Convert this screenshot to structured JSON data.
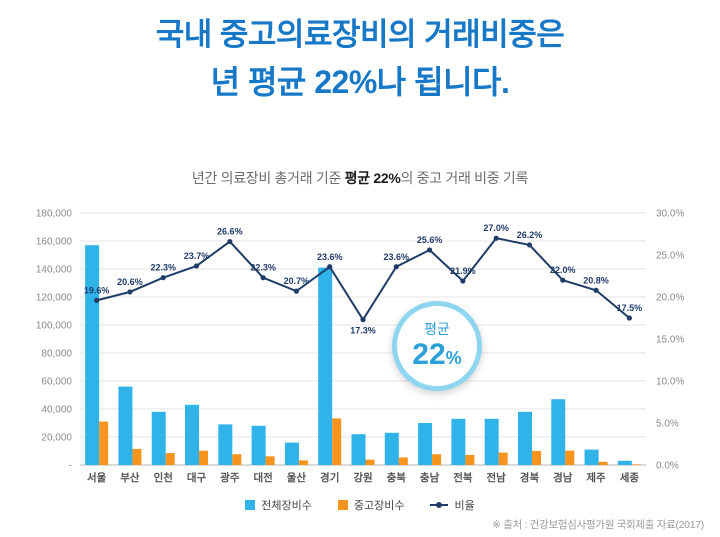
{
  "title": {
    "line1": "국내 중고의료장비의 거래비중은",
    "line2_bold": "년 평균 22%나",
    "line2_rest": " 됩니다."
  },
  "subtitle": {
    "pre": "년간 의료장비 총거래 기준 ",
    "bold": "평균 22%",
    "post": "의 중고 거래 비중 기록"
  },
  "badge": {
    "label": "평균",
    "value_number": "22",
    "value_unit": "%"
  },
  "legend": {
    "total": "전체장비수",
    "used": "중고장비수",
    "ratio": "비율"
  },
  "source": "※ 출처 : 건강보험심사평가원 국회제출 자료(2017)",
  "colors": {
    "title_blue": "#1878C8",
    "total_bar": "#2FB3E8",
    "used_bar": "#F7941D",
    "ratio_line": "#1F3B68",
    "badge_ring": "#8ED6F0",
    "badge_text": "#2B9FD8"
  },
  "chart_data": {
    "type": "bar",
    "subtype": "grouped-bars-with-line",
    "title": "년간 의료장비 총거래 기준 평균 22%의 중고 거래 비중 기록",
    "categories": [
      "서울",
      "부산",
      "인천",
      "대구",
      "광주",
      "대전",
      "울산",
      "경기",
      "강원",
      "충북",
      "충남",
      "전북",
      "전남",
      "경북",
      "경남",
      "제주",
      "세종"
    ],
    "series": [
      {
        "name": "전체장비수",
        "type": "bar",
        "axis": "left",
        "values": [
          157000,
          56000,
          38000,
          43000,
          29000,
          28000,
          16000,
          141000,
          22000,
          23000,
          30000,
          33000,
          33000,
          38000,
          47000,
          11000,
          3000
        ]
      },
      {
        "name": "중고장비수",
        "type": "bar",
        "axis": "left",
        "values": [
          31000,
          11500,
          8500,
          10200,
          7700,
          6200,
          3300,
          33300,
          3800,
          5400,
          7700,
          7200,
          8900,
          10000,
          10300,
          2300,
          500
        ]
      },
      {
        "name": "비율",
        "type": "line",
        "axis": "right",
        "values": [
          19.6,
          20.6,
          22.3,
          23.7,
          26.6,
          22.3,
          20.7,
          23.6,
          17.3,
          23.6,
          25.6,
          21.9,
          27.0,
          26.2,
          22.0,
          20.8,
          17.5
        ]
      }
    ],
    "left_axis": {
      "min": 0,
      "max": 180000,
      "step": 20000,
      "zero_label": "-"
    },
    "right_axis": {
      "min": 0,
      "max": 30,
      "step": 5,
      "unit": "%"
    },
    "grid": true,
    "legend_position": "bottom"
  }
}
